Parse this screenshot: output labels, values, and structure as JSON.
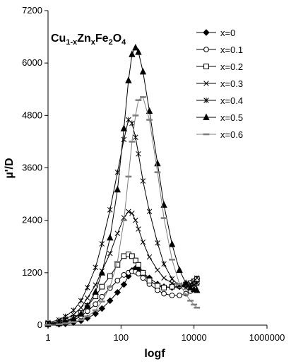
{
  "chart_data": {
    "type": "line",
    "title_main": "Cu",
    "title_sub1": "1-x",
    "title_mid1": "Zn",
    "title_sub2": "x",
    "title_mid2": "Fe",
    "title_sub3": "2",
    "title_mid3": "O",
    "title_sub4": "4",
    "xlabel": "logf",
    "ylabel": "µ'/D",
    "xscale": "log",
    "xlim": [
      1,
      1000000
    ],
    "ylim": [
      0,
      7200
    ],
    "xticks": [
      1,
      100,
      10000,
      1000000
    ],
    "xtick_labels": [
      "1",
      "100",
      "10000",
      "1000000"
    ],
    "yticks": [
      0,
      1200,
      2400,
      3600,
      4800,
      6000,
      7200
    ],
    "ytick_labels": [
      "0",
      "1200",
      "2400",
      "3600",
      "4800",
      "6000",
      "7200"
    ],
    "grid": false,
    "legend_position": "top-right",
    "series": [
      {
        "name": "x=0",
        "marker": "diamond-filled",
        "x": [
          1,
          2,
          3,
          5,
          8,
          12,
          20,
          30,
          50,
          80,
          120,
          160,
          200,
          250,
          300,
          400,
          600,
          1000,
          1500,
          2500,
          4000,
          6000,
          8000,
          10000,
          12000
        ],
        "y": [
          10,
          20,
          30,
          60,
          100,
          160,
          260,
          380,
          560,
          750,
          930,
          1120,
          1250,
          1300,
          1280,
          1200,
          1080,
          940,
          880,
          860,
          880,
          920,
          960,
          1000,
          1060
        ]
      },
      {
        "name": "x=0.1",
        "marker": "circle-open",
        "x": [
          1,
          2,
          3,
          5,
          8,
          12,
          20,
          30,
          50,
          80,
          120,
          160,
          200,
          250,
          300,
          400,
          600,
          1000,
          1500,
          2500,
          4000,
          6000,
          8000,
          10000,
          12000
        ],
        "y": [
          20,
          40,
          70,
          120,
          200,
          320,
          480,
          650,
          850,
          1020,
          1150,
          1200,
          1230,
          1220,
          1180,
          1080,
          940,
          800,
          720,
          680,
          680,
          720,
          780,
          860,
          950
        ]
      },
      {
        "name": "x=0.2",
        "marker": "square-open",
        "x": [
          1,
          2,
          3,
          5,
          8,
          12,
          20,
          30,
          50,
          80,
          120,
          160,
          200,
          250,
          300,
          400,
          600,
          1000,
          1500,
          2500,
          4000,
          6000,
          8000,
          10000,
          12000
        ],
        "y": [
          30,
          60,
          100,
          170,
          280,
          440,
          660,
          880,
          1120,
          1380,
          1580,
          1620,
          1580,
          1480,
          1380,
          1200,
          1020,
          900,
          860,
          880,
          900,
          930,
          960,
          1000,
          1050
        ]
      },
      {
        "name": "x=0.3",
        "marker": "x-cross",
        "x": [
          1,
          2,
          3,
          5,
          8,
          12,
          20,
          30,
          50,
          80,
          120,
          160,
          200,
          250,
          300,
          400,
          600,
          1000,
          1500,
          2500,
          4000,
          6000,
          8000,
          10000,
          12000
        ],
        "y": [
          40,
          80,
          140,
          240,
          400,
          620,
          920,
          1240,
          1640,
          2100,
          2460,
          2600,
          2560,
          2400,
          2200,
          1900,
          1560,
          1260,
          1080,
          960,
          920,
          930,
          950,
          1000,
          1080
        ]
      },
      {
        "name": "x=0.4",
        "marker": "star",
        "x": [
          1,
          2,
          3,
          5,
          8,
          12,
          20,
          30,
          50,
          80,
          120,
          160,
          200,
          250,
          300,
          400,
          600,
          1000,
          1500,
          2500,
          4000,
          6000,
          8000,
          10000,
          12000
        ],
        "y": [
          60,
          120,
          200,
          340,
          560,
          860,
          1320,
          1860,
          2640,
          3500,
          4250,
          4700,
          4620,
          4300,
          3920,
          3300,
          2600,
          1880,
          1400,
          1060,
          900,
          860,
          880,
          920,
          960
        ]
      },
      {
        "name": "x=0.5",
        "marker": "triangle-filled",
        "x": [
          1,
          2,
          3,
          5,
          8,
          12,
          20,
          30,
          50,
          80,
          120,
          160,
          200,
          250,
          300,
          400,
          600,
          1000,
          1500,
          2500,
          4000,
          6000,
          8000,
          10000,
          12000
        ],
        "y": [
          20,
          40,
          80,
          150,
          260,
          440,
          760,
          1200,
          2000,
          3100,
          4500,
          5600,
          6200,
          6350,
          6250,
          5800,
          4900,
          3700,
          2750,
          1850,
          1260,
          960,
          860,
          820,
          800
        ]
      },
      {
        "name": "x=0.6",
        "marker": "dash",
        "x": [
          1,
          2,
          3,
          5,
          8,
          12,
          20,
          30,
          50,
          80,
          120,
          160,
          200,
          250,
          300,
          400,
          600,
          1000,
          1500,
          2500,
          4000,
          6000,
          8000,
          10000,
          12000
        ],
        "y": [
          10,
          20,
          40,
          70,
          120,
          200,
          340,
          540,
          880,
          1450,
          2400,
          3400,
          4200,
          4800,
          5150,
          5220,
          4700,
          3500,
          2450,
          1500,
          940,
          700,
          560,
          470,
          400
        ]
      }
    ]
  }
}
